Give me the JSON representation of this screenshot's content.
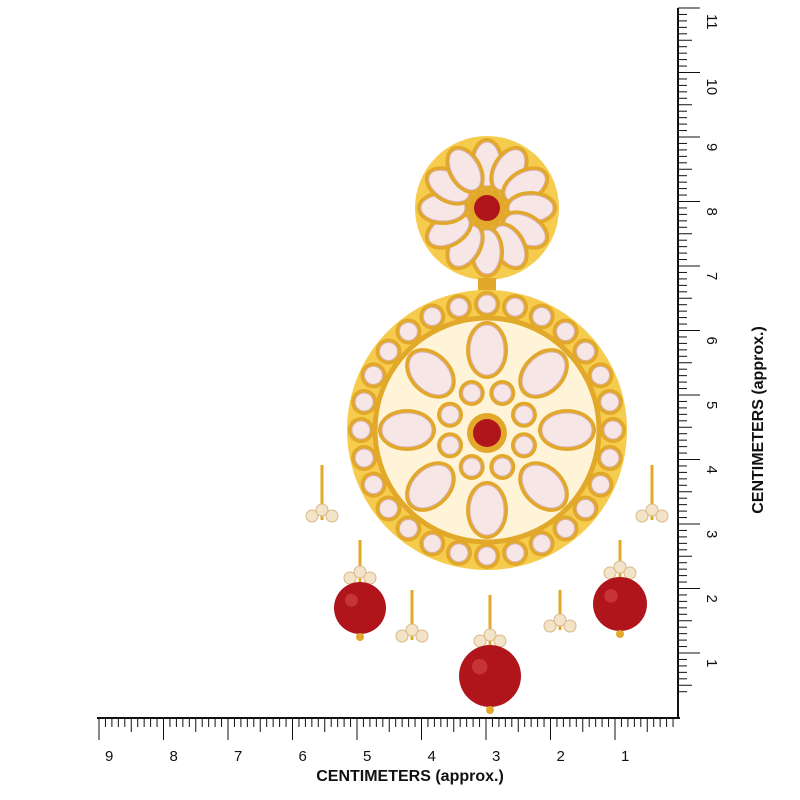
{
  "bottom_ruler": {
    "labels": [
      "9",
      "8",
      "7",
      "6",
      "5",
      "4",
      "3",
      "2",
      "1"
    ],
    "title": "CENTIMETERS (approx.)"
  },
  "right_ruler": {
    "labels": [
      "11",
      "10",
      "9",
      "8",
      "7",
      "6",
      "5",
      "4",
      "3",
      "2",
      "1"
    ],
    "title": "CENTIMETERS (approx.)"
  }
}
